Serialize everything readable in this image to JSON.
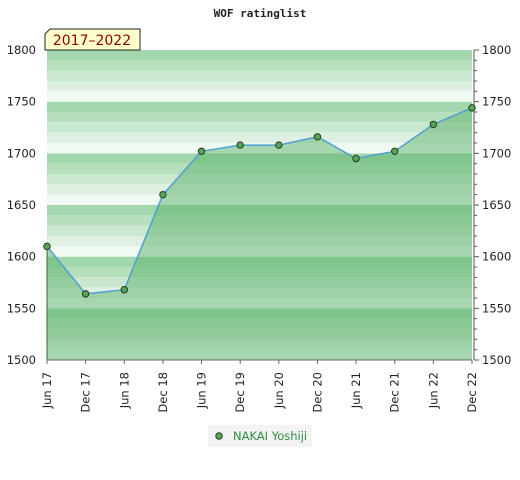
{
  "chart_data": {
    "type": "area",
    "title": "WOF ratinglist",
    "badge": "2017–2022",
    "x": [
      "Jun 17",
      "Dec 17",
      "Jun 18",
      "Dec 18",
      "Jun 19",
      "Dec 19",
      "Jun 20",
      "Dec 20",
      "Jun 21",
      "Dec 21",
      "Jun 22",
      "Dec 22"
    ],
    "series": [
      {
        "name": "NAKAI Yoshiji",
        "values": [
          1610,
          1564,
          1568,
          1660,
          1702,
          1708,
          1708,
          1716,
          1695,
          1702,
          1728,
          1744
        ]
      }
    ],
    "ylim": [
      1500,
      1800
    ],
    "y_ticks": [
      1500,
      1550,
      1600,
      1650,
      1700,
      1750,
      1800
    ],
    "y_axis_sides": "both",
    "legend_position": "bottom-center",
    "colors": {
      "line": "#4f9fd0",
      "marker_fill": "#5aa45a",
      "marker_stroke": "#1e3d1e",
      "area_fill": "#5cb46c",
      "band_top": "#a2d6ac",
      "band_bottom": "#ffffff",
      "badge_bg": "#ffffcc",
      "badge_text": "#8b0000",
      "legend_text": "#2e8b3e"
    }
  }
}
